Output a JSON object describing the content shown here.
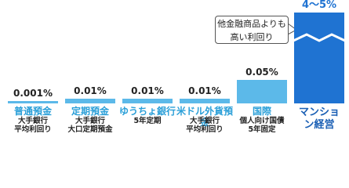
{
  "chart_data": {
    "type": "bar",
    "categories": [
      "普通預金",
      "定期預金",
      "ゆうちょ銀行",
      "米ドル外貨預金",
      "国際",
      "マンション経営"
    ],
    "sublabels": [
      [
        "大手銀行",
        "平均利回り"
      ],
      [
        "大手銀行",
        "大口定期預金"
      ],
      [
        "5年定期"
      ],
      [
        "大手銀行",
        "平均利回り"
      ],
      [
        "個人向け国債",
        "5年固定"
      ],
      []
    ],
    "values": [
      0.001,
      0.01,
      0.01,
      0.01,
      0.05,
      4.5
    ],
    "value_labels": [
      "0.001%",
      "0.01%",
      "0.01%",
      "0.01%",
      "0.05%",
      "4〜5%"
    ],
    "colors": [
      "#5cb9e9",
      "#5cb9e9",
      "#5cb9e9",
      "#5cb9e9",
      "#5cb9e9",
      "#1f73d2"
    ],
    "ylim": [
      0,
      0.06
    ],
    "axis_break": true,
    "annotation": "他金融商品よりも高い利回り"
  }
}
